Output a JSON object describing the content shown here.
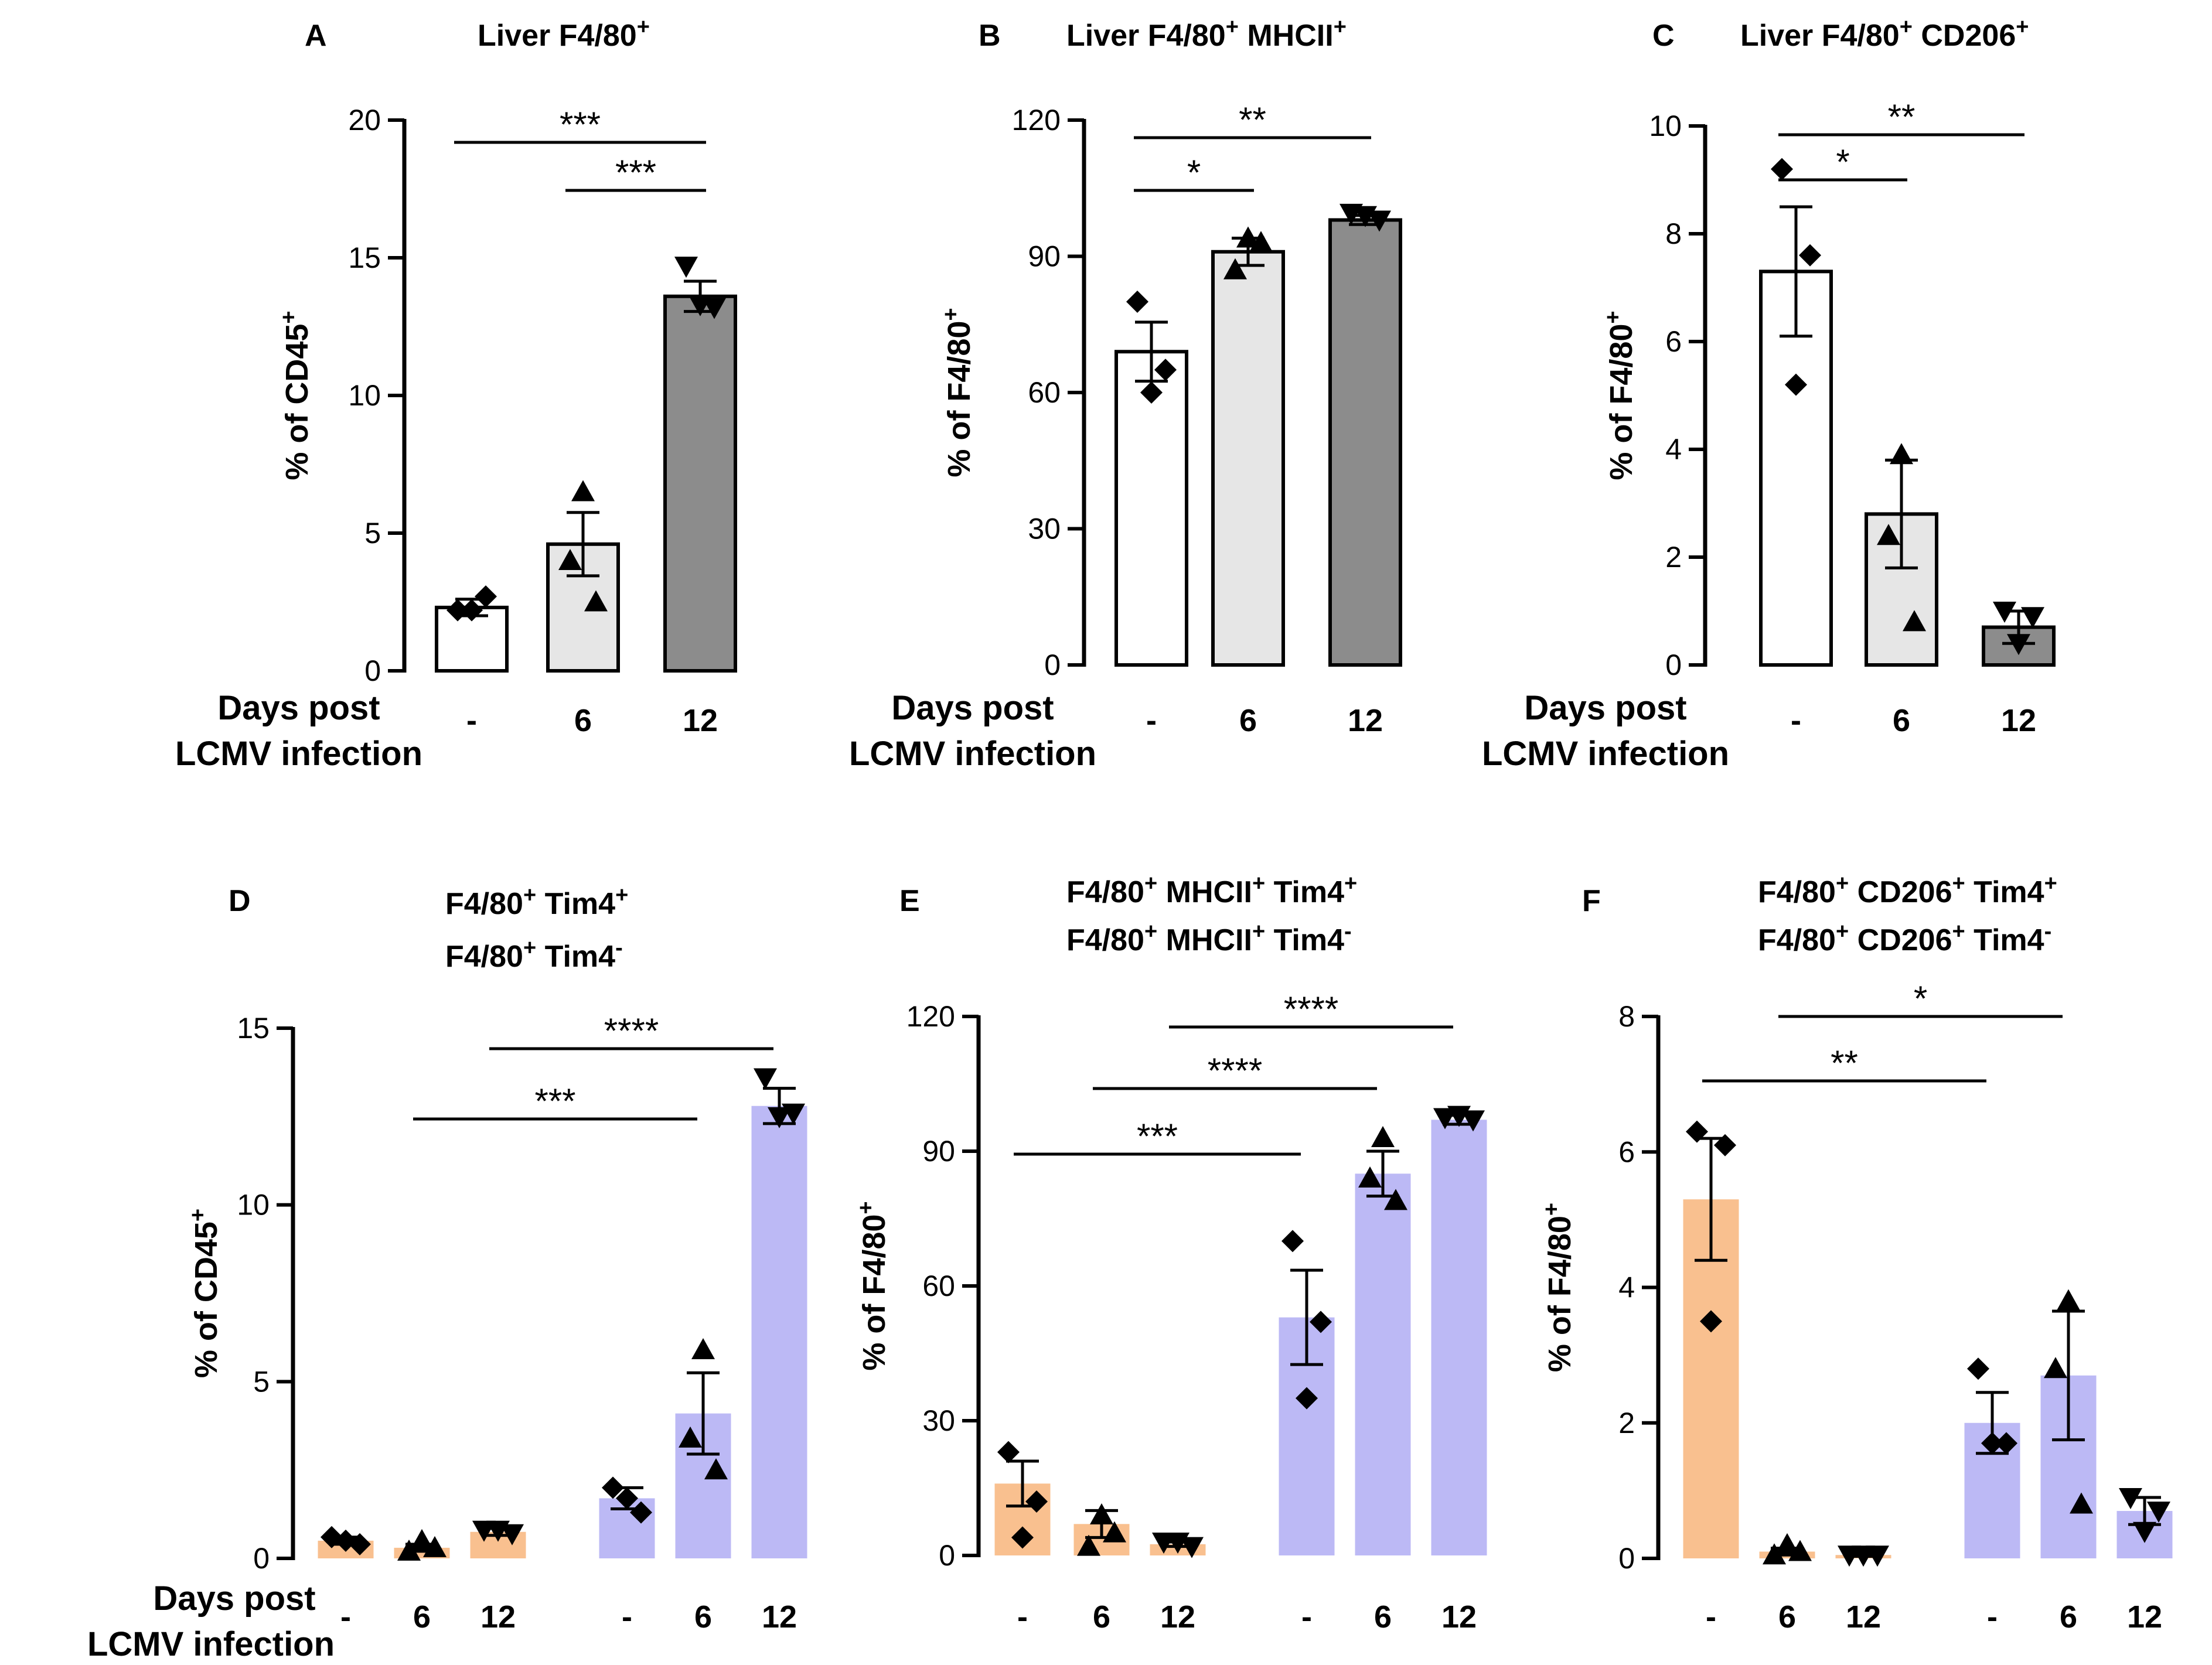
{
  "figure": {
    "days_label_line1": "Days post",
    "days_label_line2": "LCMV infection"
  },
  "chart_data": [
    {
      "id": "A",
      "type": "bar",
      "letter": "A",
      "title": "Liver F4/80",
      "title_sup": "+",
      "ylabel": "% of CD45",
      "ylabel_sup": "+",
      "ylim": [
        0,
        20
      ],
      "yticks": [
        0,
        5,
        10,
        15,
        20
      ],
      "categories": [
        "-",
        "6",
        "12"
      ],
      "colors": [
        "#ffffff",
        "#e6e6e6",
        "#8c8c8c"
      ],
      "means": [
        2.3,
        4.6,
        13.6
      ],
      "sems": [
        0.3,
        1.15,
        0.55
      ],
      "markers": [
        "diamond",
        "triangle",
        "triangle-down"
      ],
      "points": [
        [
          2.2,
          2.7,
          2.2
        ],
        [
          6.5,
          4.0,
          2.5
        ],
        [
          14.7,
          13.2,
          13.3
        ]
      ],
      "significance": [
        {
          "from": 0,
          "to": 2,
          "label": "***"
        },
        {
          "from": 1,
          "to": 2,
          "label": "***"
        }
      ]
    },
    {
      "id": "B",
      "type": "bar",
      "letter": "B",
      "title": "Liver F4/80",
      "title_sup": "+",
      "title2": " MHCII",
      "title2_sup": "+",
      "ylabel": "% of F4/80",
      "ylabel_sup": "+",
      "ylim": [
        0,
        120
      ],
      "yticks": [
        0,
        30,
        60,
        90,
        120
      ],
      "categories": [
        "-",
        "6",
        "12"
      ],
      "colors": [
        "#ffffff",
        "#e6e6e6",
        "#8c8c8c"
      ],
      "means": [
        69,
        91,
        98
      ],
      "sems": [
        6.5,
        3,
        1
      ],
      "markers": [
        "diamond",
        "triangle",
        "triangle-down"
      ],
      "points": [
        [
          80,
          65,
          60
        ],
        [
          94,
          87,
          93
        ],
        [
          99.5,
          98,
          99
        ]
      ],
      "significance": [
        {
          "from": 0,
          "to": 2,
          "label": "**"
        },
        {
          "from": 0,
          "to": 1,
          "label": "*"
        }
      ]
    },
    {
      "id": "C",
      "type": "bar",
      "letter": "C",
      "title": "Liver F4/80",
      "title_sup": "+",
      "title2": " CD206",
      "title2_sup": "+",
      "ylabel": "% of F4/80",
      "ylabel_sup": "+",
      "ylim": [
        0,
        10
      ],
      "yticks": [
        0,
        2,
        4,
        6,
        8,
        10
      ],
      "categories": [
        "-",
        "6",
        "12"
      ],
      "colors": [
        "#ffffff",
        "#e6e6e6",
        "#8c8c8c"
      ],
      "means": [
        7.3,
        2.8,
        0.7
      ],
      "sems": [
        1.2,
        1.0,
        0.3
      ],
      "markers": [
        "diamond",
        "triangle",
        "triangle-down"
      ],
      "points": [
        [
          9.2,
          7.6,
          5.2
        ],
        [
          3.9,
          2.4,
          0.8
        ],
        [
          1.0,
          0.9,
          0.4
        ]
      ],
      "significance": [
        {
          "from": 0,
          "to": 2,
          "label": "**"
        },
        {
          "from": 0,
          "to": 1,
          "label": "*"
        }
      ]
    },
    {
      "id": "D",
      "type": "bar",
      "letter": "D",
      "legend": [
        {
          "text": "F4/80",
          "sup": "+",
          "text2": " Tim4",
          "sup2": "+",
          "color": "#f28a2e"
        },
        {
          "text": "F4/80",
          "sup": "+",
          "text2": " Tim4",
          "sup2": "-",
          "color": "#7b2be2"
        }
      ],
      "ylabel": "% of CD45",
      "ylabel_sup": "+",
      "ylim": [
        0,
        15
      ],
      "yticks": [
        0,
        5,
        10,
        15
      ],
      "categories": [
        "-",
        "6",
        "12",
        "-",
        "6",
        "12"
      ],
      "colors": [
        "#f9c08f",
        "#f9c08f",
        "#f9c08f",
        "#bcb9f5",
        "#bcb9f5",
        "#bcb9f5"
      ],
      "means": [
        0.5,
        0.3,
        0.75,
        1.7,
        4.1,
        12.8
      ],
      "sems": [
        0.1,
        0.1,
        0.1,
        0.3,
        1.15,
        0.5
      ],
      "markers": [
        "diamond",
        "triangle",
        "triangle-down",
        "diamond",
        "triangle",
        "triangle-down"
      ],
      "points": [
        [
          0.6,
          0.4,
          0.5
        ],
        [
          0.5,
          0.2,
          0.3
        ],
        [
          0.8,
          0.7,
          0.8
        ],
        [
          2.0,
          1.3,
          1.7
        ],
        [
          5.9,
          3.4,
          2.5
        ],
        [
          13.6,
          12.6,
          12.5
        ]
      ],
      "significance": [
        {
          "from": 1,
          "to": 4,
          "label": "***"
        },
        {
          "from": 2,
          "to": 5,
          "label": "****"
        }
      ]
    },
    {
      "id": "E",
      "type": "bar",
      "letter": "E",
      "legend": [
        {
          "text": "F4/80",
          "sup": "+",
          "text2": " MHCII",
          "sup2": "+",
          "text3": " Tim4",
          "sup3": "+",
          "color": "#f28a2e"
        },
        {
          "text": "F4/80",
          "sup": "+",
          "text2": " MHCII",
          "sup2": "+",
          "text3": " Tim4",
          "sup3": "-",
          "color": "#7b2be2"
        }
      ],
      "ylabel": "% of F4/80",
      "ylabel_sup": "+",
      "ylim": [
        0,
        120
      ],
      "yticks": [
        0,
        30,
        60,
        90,
        120
      ],
      "categories": [
        "-",
        "6",
        "12",
        "-",
        "6",
        "12"
      ],
      "colors": [
        "#f9c08f",
        "#f9c08f",
        "#f9c08f",
        "#bcb9f5",
        "#bcb9f5",
        "#bcb9f5"
      ],
      "means": [
        16,
        7,
        2.5,
        53,
        85,
        97
      ],
      "sems": [
        5,
        3,
        0.5,
        10.5,
        5,
        1
      ],
      "markers": [
        "diamond",
        "triangle",
        "triangle-down",
        "diamond",
        "triangle",
        "triangle-down"
      ],
      "points": [
        [
          23,
          12,
          4
        ],
        [
          9,
          2,
          5
        ],
        [
          3,
          2,
          3
        ],
        [
          70,
          52,
          35
        ],
        [
          93,
          84,
          79
        ],
        [
          97.5,
          97,
          98
        ]
      ],
      "significance": [
        {
          "from": 0,
          "to": 3,
          "label": "***"
        },
        {
          "from": 1,
          "to": 4,
          "label": "****"
        },
        {
          "from": 2,
          "to": 5,
          "label": "****"
        }
      ]
    },
    {
      "id": "F",
      "type": "bar",
      "letter": "F",
      "legend": [
        {
          "text": "F4/80",
          "sup": "+",
          "text2": " CD206",
          "sup2": "+",
          "text3": " Tim4",
          "sup3": "+",
          "color": "#f28a2e"
        },
        {
          "text": "F4/80",
          "sup": "+",
          "text2": " CD206",
          "sup2": "+",
          "text3": " Tim4",
          "sup3": "-",
          "color": "#7b2be2"
        }
      ],
      "ylabel": "% of F4/80",
      "ylabel_sup": "+",
      "ylim": [
        0,
        8
      ],
      "yticks": [
        0,
        2,
        4,
        6,
        8
      ],
      "categories": [
        "-",
        "6",
        "12",
        "-",
        "6",
        "12"
      ],
      "colors": [
        "#f9c08f",
        "#f9c08f",
        "#f9c08f",
        "#bcb9f5",
        "#bcb9f5",
        "#bcb9f5"
      ],
      "means": [
        5.3,
        0.1,
        0.05,
        2.0,
        2.7,
        0.7
      ],
      "sems": [
        0.9,
        0.05,
        0.02,
        0.45,
        0.95,
        0.2
      ],
      "markers": [
        "diamond",
        "triangle",
        "triangle-down",
        "diamond",
        "triangle",
        "triangle-down"
      ],
      "points": [
        [
          6.3,
          6.1,
          3.5
        ],
        [
          0.2,
          0.05,
          0.1
        ],
        [
          0.05,
          0.05,
          0.05
        ],
        [
          2.8,
          1.7,
          1.7
        ],
        [
          3.8,
          2.8,
          0.8
        ],
        [
          0.9,
          0.7,
          0.4
        ]
      ],
      "significance": [
        {
          "from": 0,
          "to": 3,
          "label": "**"
        },
        {
          "from": 1,
          "to": 4,
          "label": "*"
        }
      ]
    }
  ]
}
